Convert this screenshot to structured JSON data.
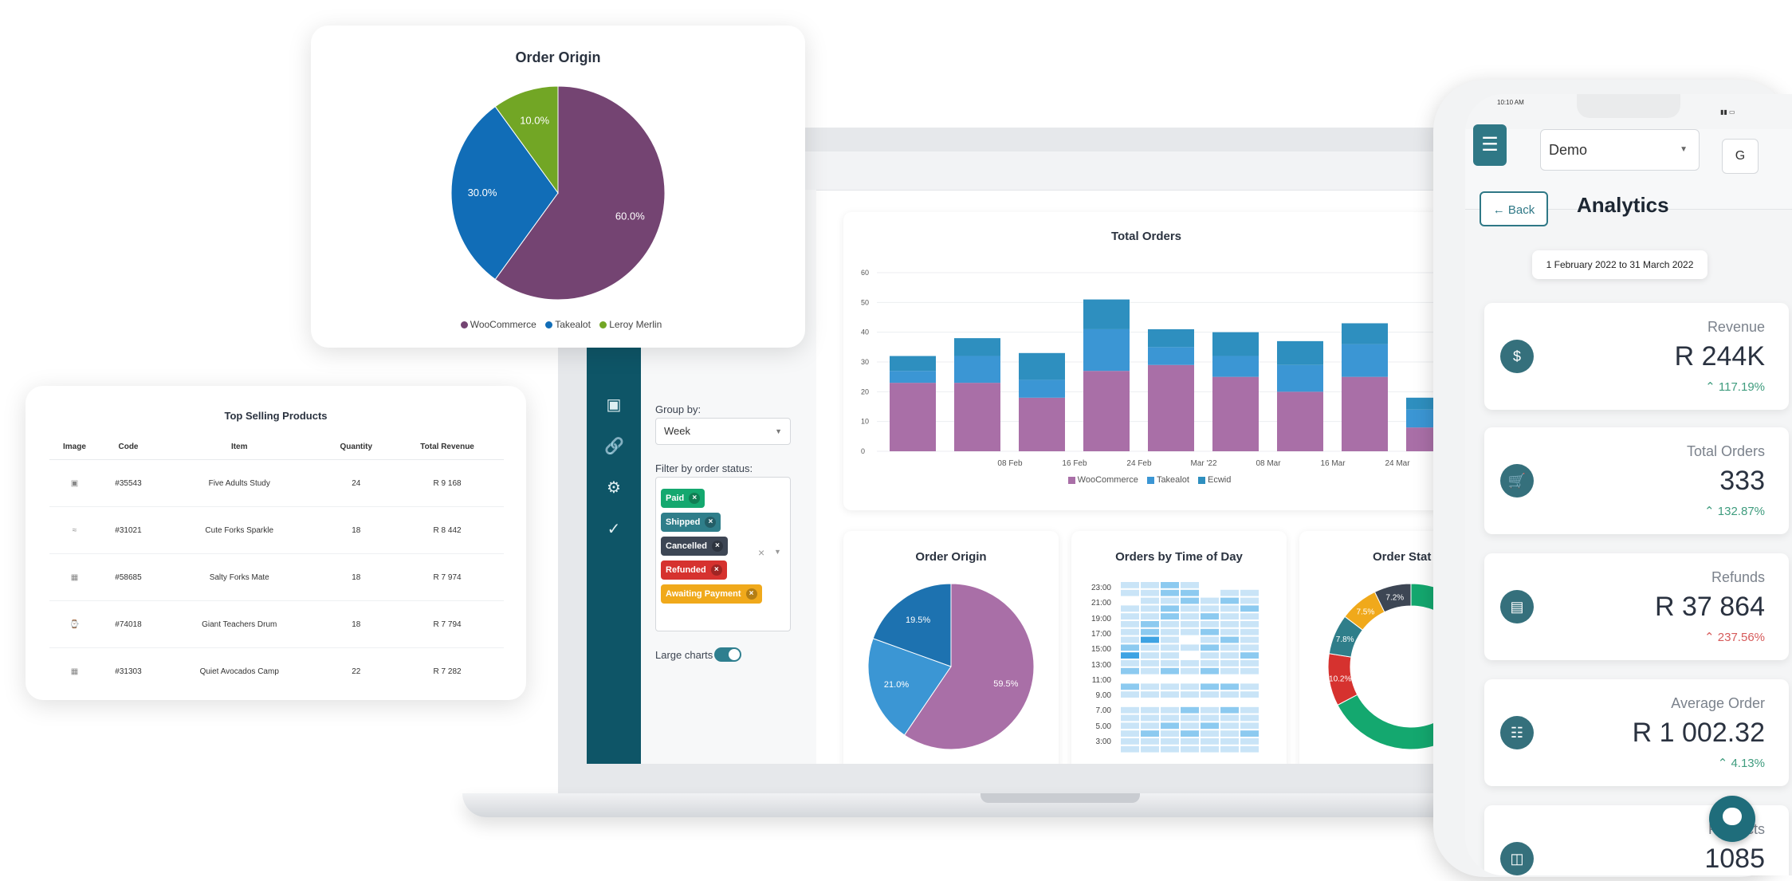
{
  "colors": {
    "woocommerce": "#744472",
    "takealot": "#116db7",
    "leroy": "#72a625",
    "woo_light": "#a96fa7",
    "takealot_light": "#3b96d4",
    "ecwid": "#2e8fbf",
    "teal": "#0e5567"
  },
  "origin_card": {
    "title": "Order Origin",
    "legend": [
      "WooCommerce",
      "Takealot",
      "Leroy Merlin"
    ]
  },
  "top_products": {
    "title": "Top Selling Products",
    "headers": [
      "Image",
      "Code",
      "Item",
      "Quantity",
      "Total Revenue"
    ],
    "rows": [
      {
        "code": "#35543",
        "item": "Five Adults Study",
        "qty": "24",
        "rev": "R 9 168"
      },
      {
        "code": "#31021",
        "item": "Cute Forks Sparkle",
        "qty": "18",
        "rev": "R 8 442"
      },
      {
        "code": "#58685",
        "item": "Salty Forks Mate",
        "qty": "18",
        "rev": "R 7 974"
      },
      {
        "code": "#74018",
        "item": "Giant Teachers Drum",
        "qty": "18",
        "rev": "R 7 794"
      },
      {
        "code": "#31303",
        "item": "Quiet Avocados Camp",
        "qty": "22",
        "rev": "R 7 282"
      }
    ]
  },
  "filters": {
    "group_label": "Group by:",
    "group_value": "Week",
    "status_label": "Filter by order status:",
    "statuses": [
      "Paid",
      "Shipped",
      "Cancelled",
      "Refunded",
      "Awaiting Payment"
    ],
    "large_charts_label": "Large charts"
  },
  "total_orders": {
    "title": "Total Orders",
    "legend": [
      "WooCommerce",
      "Takealot",
      "Ecwid"
    ]
  },
  "origin_small": {
    "title": "Order Origin"
  },
  "time_of_day": {
    "title": "Orders by Time of Day",
    "hours": [
      "23:00",
      "21:00",
      "19:00",
      "17:00",
      "15:00",
      "13:00",
      "11:00",
      "9.00",
      "7.00",
      "5.00",
      "3:00"
    ]
  },
  "order_status": {
    "title": "Order Stat"
  },
  "phone": {
    "time": "10:10 AM",
    "store": "Demo",
    "avatar": "G",
    "back": "Back",
    "title": "Analytics",
    "range": "1 February 2022 to 31 March 2022",
    "cards": [
      {
        "label": "Revenue",
        "value": "R 244K",
        "change": "117.19%",
        "dir": "up"
      },
      {
        "label": "Total Orders",
        "value": "333",
        "change": "132.87%",
        "dir": "up"
      },
      {
        "label": "Refunds",
        "value": "R 37 864",
        "change": "237.56%",
        "dir": "bad"
      },
      {
        "label": "Average Order",
        "value": "R 1 002.32",
        "change": "4.13%",
        "dir": "up"
      },
      {
        "label": "Products",
        "value": "1085",
        "change": "",
        "dir": ""
      }
    ]
  },
  "chart_data": [
    {
      "type": "pie",
      "title": "Order Origin",
      "categories": [
        "WooCommerce",
        "Takealot",
        "Leroy Merlin"
      ],
      "values": [
        60.0,
        30.0,
        10.0
      ]
    },
    {
      "type": "bar",
      "title": "Total Orders",
      "categories": [
        "",
        "08 Feb",
        "16 Feb",
        "24 Feb",
        "Mar '22",
        "08 Mar",
        "16 Mar",
        "24 Mar",
        ""
      ],
      "series": [
        {
          "name": "WooCommerce",
          "values": [
            23,
            23,
            18,
            27,
            29,
            25,
            20,
            25,
            8
          ]
        },
        {
          "name": "Takealot",
          "values": [
            4,
            9,
            6,
            14,
            6,
            7,
            9,
            11,
            6
          ]
        },
        {
          "name": "Ecwid",
          "values": [
            5,
            6,
            9,
            10,
            6,
            8,
            8,
            7,
            4
          ]
        }
      ],
      "ylim": [
        0,
        60
      ],
      "yticks": [
        0,
        10,
        20,
        30,
        40,
        50,
        60
      ]
    },
    {
      "type": "pie",
      "title": "Order Origin",
      "categories": [
        "WooCommerce",
        "Takealot",
        "Leroy Merlin"
      ],
      "values": [
        59.5,
        21.0,
        19.5
      ]
    },
    {
      "type": "pie",
      "title": "Order Stat",
      "categories": [
        "",
        "",
        "",
        "",
        ""
      ],
      "values": [
        7.2,
        7.5,
        7.8,
        10.2,
        67.3
      ]
    }
  ]
}
